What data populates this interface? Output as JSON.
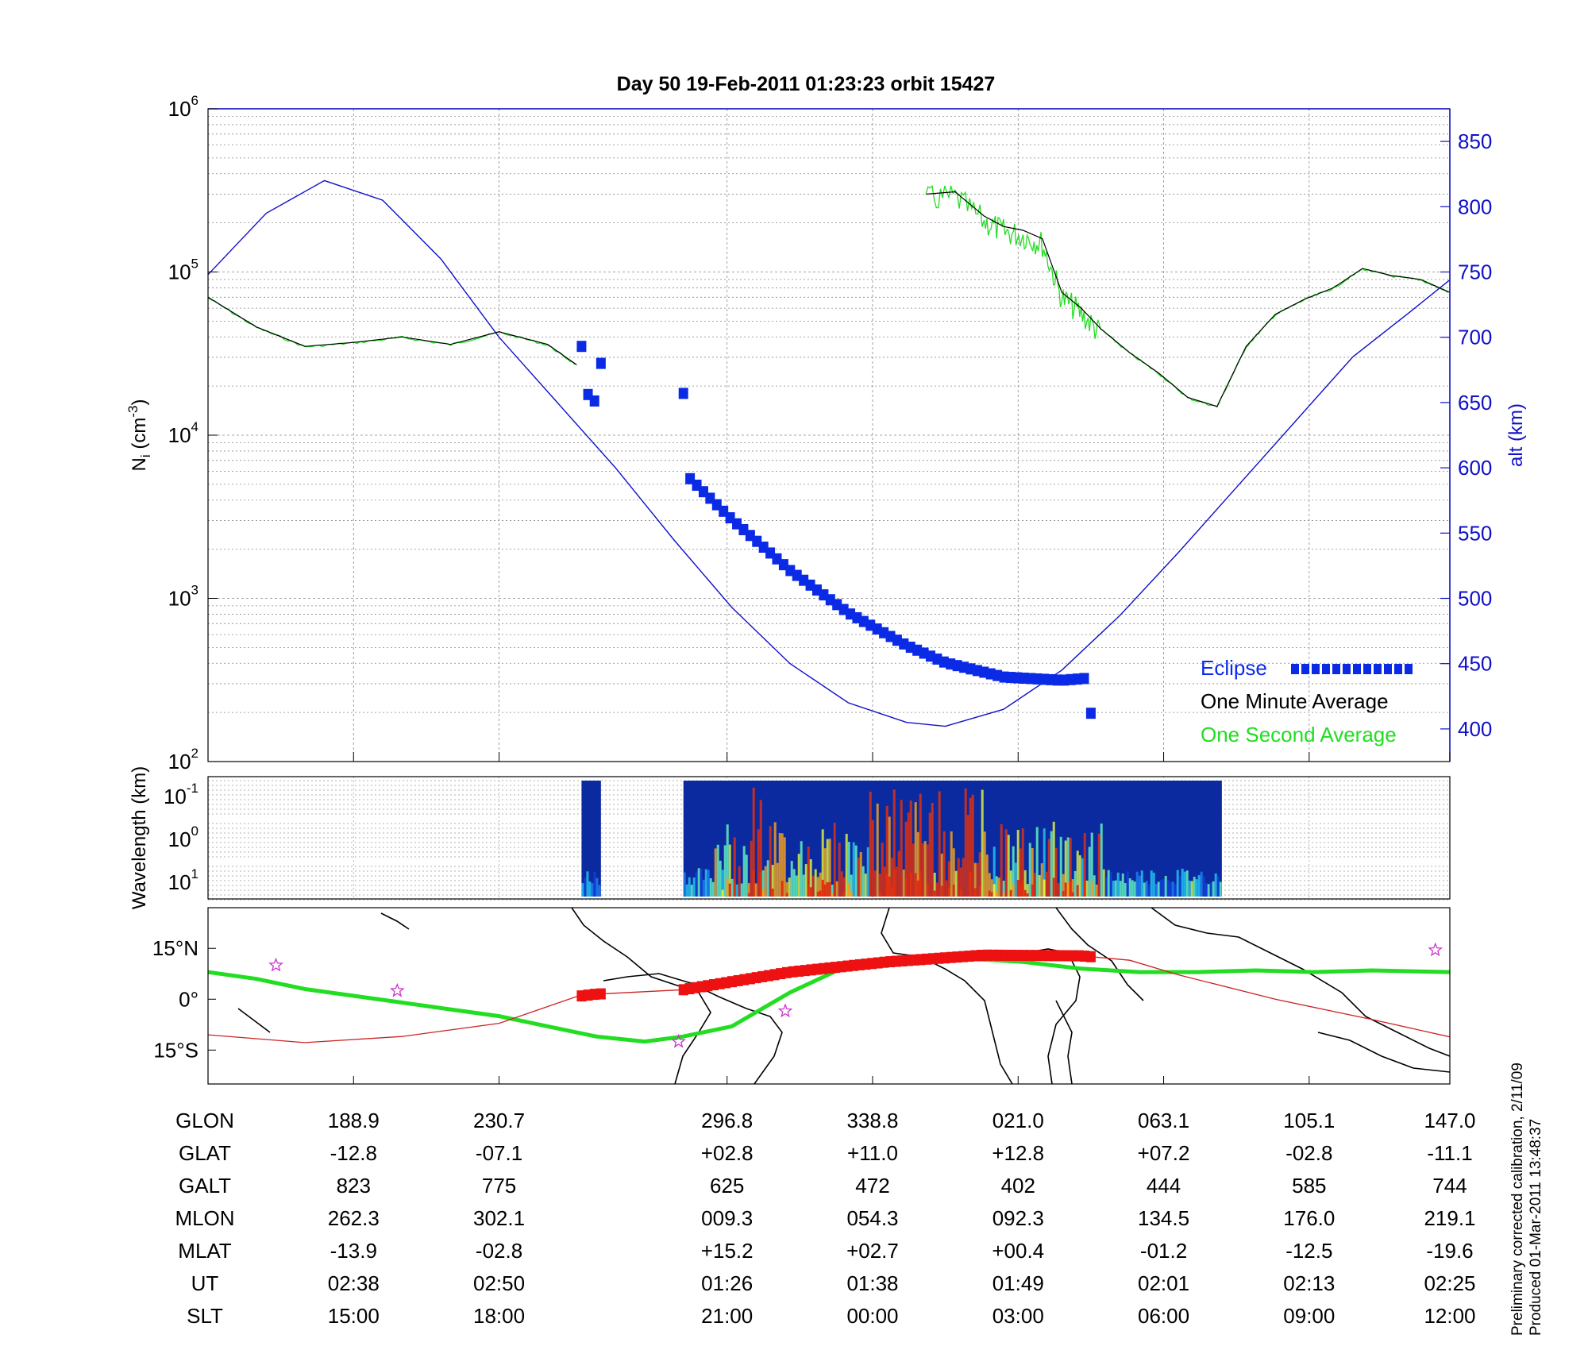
{
  "title": "Day 50  19-Feb-2011 01:23:23   orbit 15427",
  "colors": {
    "altitude": "#1010c8",
    "eclipse": "#0a2ae6",
    "minute_avg": "#000000",
    "second_avg": "#22dd22",
    "track_eclipse": "#ee1111",
    "track_line": "#cc2222",
    "magnetic_equator": "#22dd22",
    "star_marker": "#cc33cc"
  },
  "chart_data": [
    {
      "type": "line",
      "panel": "ion-density",
      "ylabel": "N",
      "ylabel_sub": "i",
      "ylabel_unit": " (cm",
      "ylabel_unit_sup": "-3",
      "ylabel_close": ")",
      "yscale": "log",
      "ylim": [
        100,
        1000000
      ],
      "ytick_base": "10",
      "ytick_exponents": [
        "2",
        "3",
        "4",
        "5",
        "6"
      ],
      "y2label": "alt (km)",
      "y2lim": [
        375,
        875
      ],
      "y2ticks": [
        "400",
        "450",
        "500",
        "550",
        "600",
        "650",
        "700",
        "750",
        "800",
        "850"
      ],
      "grid": true,
      "legend_position": "bottom-right",
      "legend": [
        "Eclipse",
        "One Minute Average",
        "One Second Average"
      ],
      "x_range_minutes": [
        0,
        128
      ],
      "series": [
        {
          "name": "One Minute Average",
          "x": [
            0,
            5,
            10,
            15,
            20,
            25,
            30,
            35,
            38,
            40,
            45,
            50,
            55,
            60,
            65,
            70,
            74,
            77,
            80,
            82,
            84,
            86,
            88,
            90,
            92,
            95,
            98,
            101,
            104,
            107,
            110,
            113,
            116,
            119,
            122,
            125,
            128
          ],
          "y": [
            70000,
            46000,
            35000,
            37000,
            40000,
            36000,
            43000,
            36000,
            27000,
            0,
            0,
            0,
            0,
            0,
            0,
            0,
            300000,
            310000,
            220000,
            190000,
            180000,
            160000,
            75000,
            60000,
            45000,
            32000,
            24000,
            17000,
            15000,
            35000,
            55000,
            68000,
            80000,
            105000,
            95000,
            90000,
            75000
          ]
        },
        {
          "name": "Altitude",
          "x": [
            0,
            6,
            12,
            18,
            24,
            30,
            36,
            42,
            48,
            54,
            60,
            66,
            72,
            76,
            82,
            88,
            94,
            100,
            106,
            112,
            118,
            124,
            128
          ],
          "y": [
            748,
            795,
            820,
            805,
            760,
            700,
            650,
            600,
            545,
            493,
            450,
            420,
            405,
            402,
            415,
            445,
            487,
            535,
            585,
            635,
            685,
            720,
            744
          ]
        }
      ],
      "eclipse_segments": [
        {
          "from": 38.5,
          "to": 40.5,
          "alt_from": 693,
          "alt_to": 680
        },
        {
          "from": 49,
          "to": 91,
          "alt_from": 657,
          "alt_to": 412
        }
      ]
    },
    {
      "type": "heatmap",
      "panel": "wavelength-spectrogram",
      "ylabel": "Wavelength (km)",
      "yscale": "log",
      "ytick_base": "10",
      "ytick_exponents": [
        "-1",
        "0",
        "1"
      ],
      "data_blocks": [
        {
          "from": 38.5,
          "to": 40.5
        },
        {
          "from": 49,
          "to": 104.5
        }
      ]
    },
    {
      "type": "map",
      "panel": "ground-track",
      "ytick_labels": [
        "15°N",
        "0°",
        "15°S"
      ],
      "ylim": [
        -25,
        27
      ],
      "track": {
        "x": [
          0,
          10,
          20,
          30,
          38,
          40,
          49,
          60,
          70,
          80,
          90,
          95,
          100,
          110,
          120,
          128
        ],
        "lat": [
          -10.5,
          -12.8,
          -11,
          -7.1,
          0.8,
          1.5,
          2.8,
          8,
          11.0,
          13.0,
          12.8,
          11.5,
          7.2,
          0,
          -6,
          -11.1
        ]
      },
      "magnetic_equator": {
        "x": [
          0,
          5,
          10,
          15,
          20,
          25,
          30,
          35,
          40,
          45,
          49,
          54,
          60,
          66,
          72,
          78,
          84,
          90,
          96,
          102,
          108,
          114,
          120,
          128
        ],
        "lat": [
          8,
          6,
          3,
          1,
          -1,
          -3,
          -5,
          -8,
          -11,
          -12.5,
          -11,
          -8,
          2,
          10,
          12,
          12,
          11,
          9,
          8,
          8,
          8.5,
          8,
          8.5,
          8
        ]
      },
      "stars": [
        {
          "x": 7,
          "lat": 10
        },
        {
          "x": 19.5,
          "lat": 2.5
        },
        {
          "x": 48.5,
          "lat": -12.5
        },
        {
          "x": 59.5,
          "lat": -3.5
        },
        {
          "x": 126.5,
          "lat": 14.5
        }
      ]
    }
  ],
  "ephemeris": {
    "row_labels": [
      "GLON",
      "GLAT",
      "GALT",
      "MLON",
      "MLAT",
      "UT",
      "SLT"
    ],
    "columns": [
      {
        "x": 15,
        "values": [
          "188.9",
          "-12.8",
          "823",
          "262.3",
          "-13.9",
          "02:38",
          "15:00"
        ]
      },
      {
        "x": 30,
        "values": [
          "230.7",
          "-07.1",
          "775",
          "302.1",
          "-02.8",
          "02:50",
          "18:00"
        ]
      },
      {
        "x": 53.5,
        "values": [
          "296.8",
          "+02.8",
          "625",
          "009.3",
          "+15.2",
          "01:26",
          "21:00"
        ]
      },
      {
        "x": 68.5,
        "values": [
          "338.8",
          "+11.0",
          "472",
          "054.3",
          "+02.7",
          "01:38",
          "00:00"
        ]
      },
      {
        "x": 83.5,
        "values": [
          "021.0",
          "+12.8",
          "402",
          "092.3",
          "+00.4",
          "01:49",
          "03:00"
        ]
      },
      {
        "x": 98.5,
        "values": [
          "063.1",
          "+07.2",
          "444",
          "134.5",
          "-01.2",
          "02:01",
          "06:00"
        ]
      },
      {
        "x": 113.5,
        "values": [
          "105.1",
          "-02.8",
          "585",
          "176.0",
          "-12.5",
          "02:13",
          "09:00"
        ]
      },
      {
        "x": 128,
        "values": [
          "147.0",
          "-11.1",
          "744",
          "219.1",
          "-19.6",
          "02:25",
          "12:00"
        ]
      }
    ]
  },
  "footnotes": {
    "calibration": "Preliminary corrected calibration, 2/11/09",
    "produced": "Produced 01-Mar-2011 13:48:37"
  }
}
